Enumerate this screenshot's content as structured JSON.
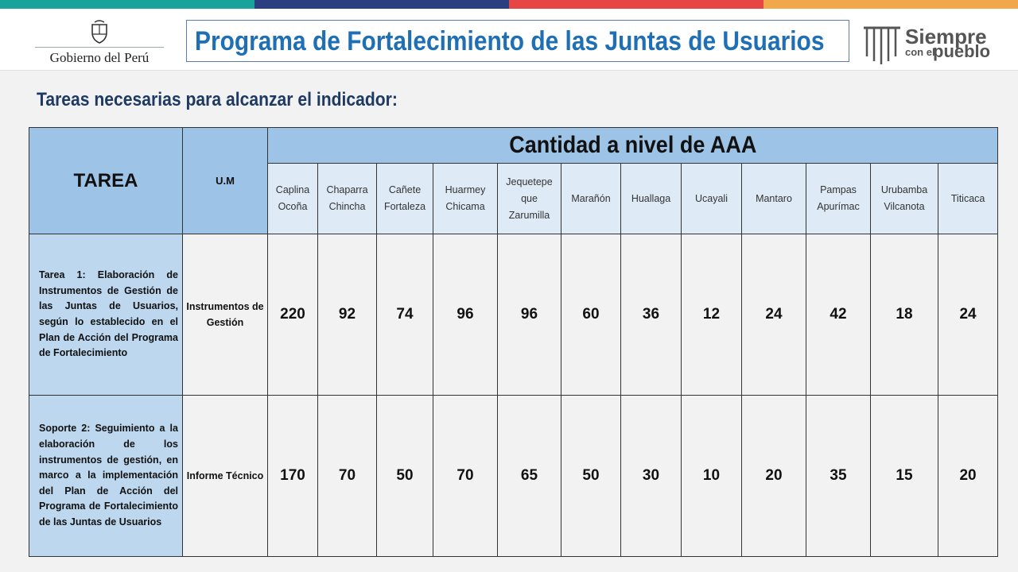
{
  "colors": {
    "bar": [
      "#1aa39b",
      "#2b3f80",
      "#e84545",
      "#f0a84b"
    ],
    "title": "#1f6fb5",
    "subtitle": "#1e3a63",
    "header_fill": "#9dc3e6",
    "task_fill": "#bdd7ee"
  },
  "header": {
    "gob_logo": "Gobierno del Perú",
    "title": "Programa de Fortalecimiento de las Juntas de Usuarios",
    "right_logo": {
      "line1": "Siempre",
      "line2": "con el",
      "line3": "pueblo"
    }
  },
  "subtitle": "Tareas necesarias para alcanzar el indicador:",
  "table": {
    "col_tarea": "TAREA",
    "col_um": "U.M",
    "group_header": "Cantidad a nivel de AAA",
    "aaa": [
      [
        "Caplina",
        "Ocoña"
      ],
      [
        "Chaparra",
        "Chincha"
      ],
      [
        "Cañete",
        "Fortaleza"
      ],
      [
        "Huarmey",
        "Chicama"
      ],
      [
        "Jequetepe",
        "que",
        "Zarumilla"
      ],
      [
        "Marañón"
      ],
      [
        "Huallaga"
      ],
      [
        "Ucayali"
      ],
      [
        "Mantaro"
      ],
      [
        "Pampas",
        "Apurímac"
      ],
      [
        "Urubamba",
        "Vilcanota"
      ],
      [
        "Titicaca"
      ]
    ],
    "rows": [
      {
        "tarea": "Tarea 1: Elaboración de Instrumentos de Gestión de las Juntas de Usuarios, según lo establecido en el Plan de Acción del Programa de Fortalecimiento",
        "um": "Instrumentos de Gestión",
        "values": [
          "220",
          "92",
          "74",
          "96",
          "96",
          "60",
          "36",
          "12",
          "24",
          "42",
          "18",
          "24"
        ]
      },
      {
        "tarea": "Soporte 2: Seguimiento a la elaboración de los instrumentos de gestión, en marco a la implementación del Plan de Acción del Programa de Fortalecimiento de las Juntas de Usuarios",
        "um": "Informe Técnico",
        "values": [
          "170",
          "70",
          "50",
          "70",
          "65",
          "50",
          "30",
          "10",
          "20",
          "35",
          "15",
          "20"
        ]
      }
    ]
  }
}
